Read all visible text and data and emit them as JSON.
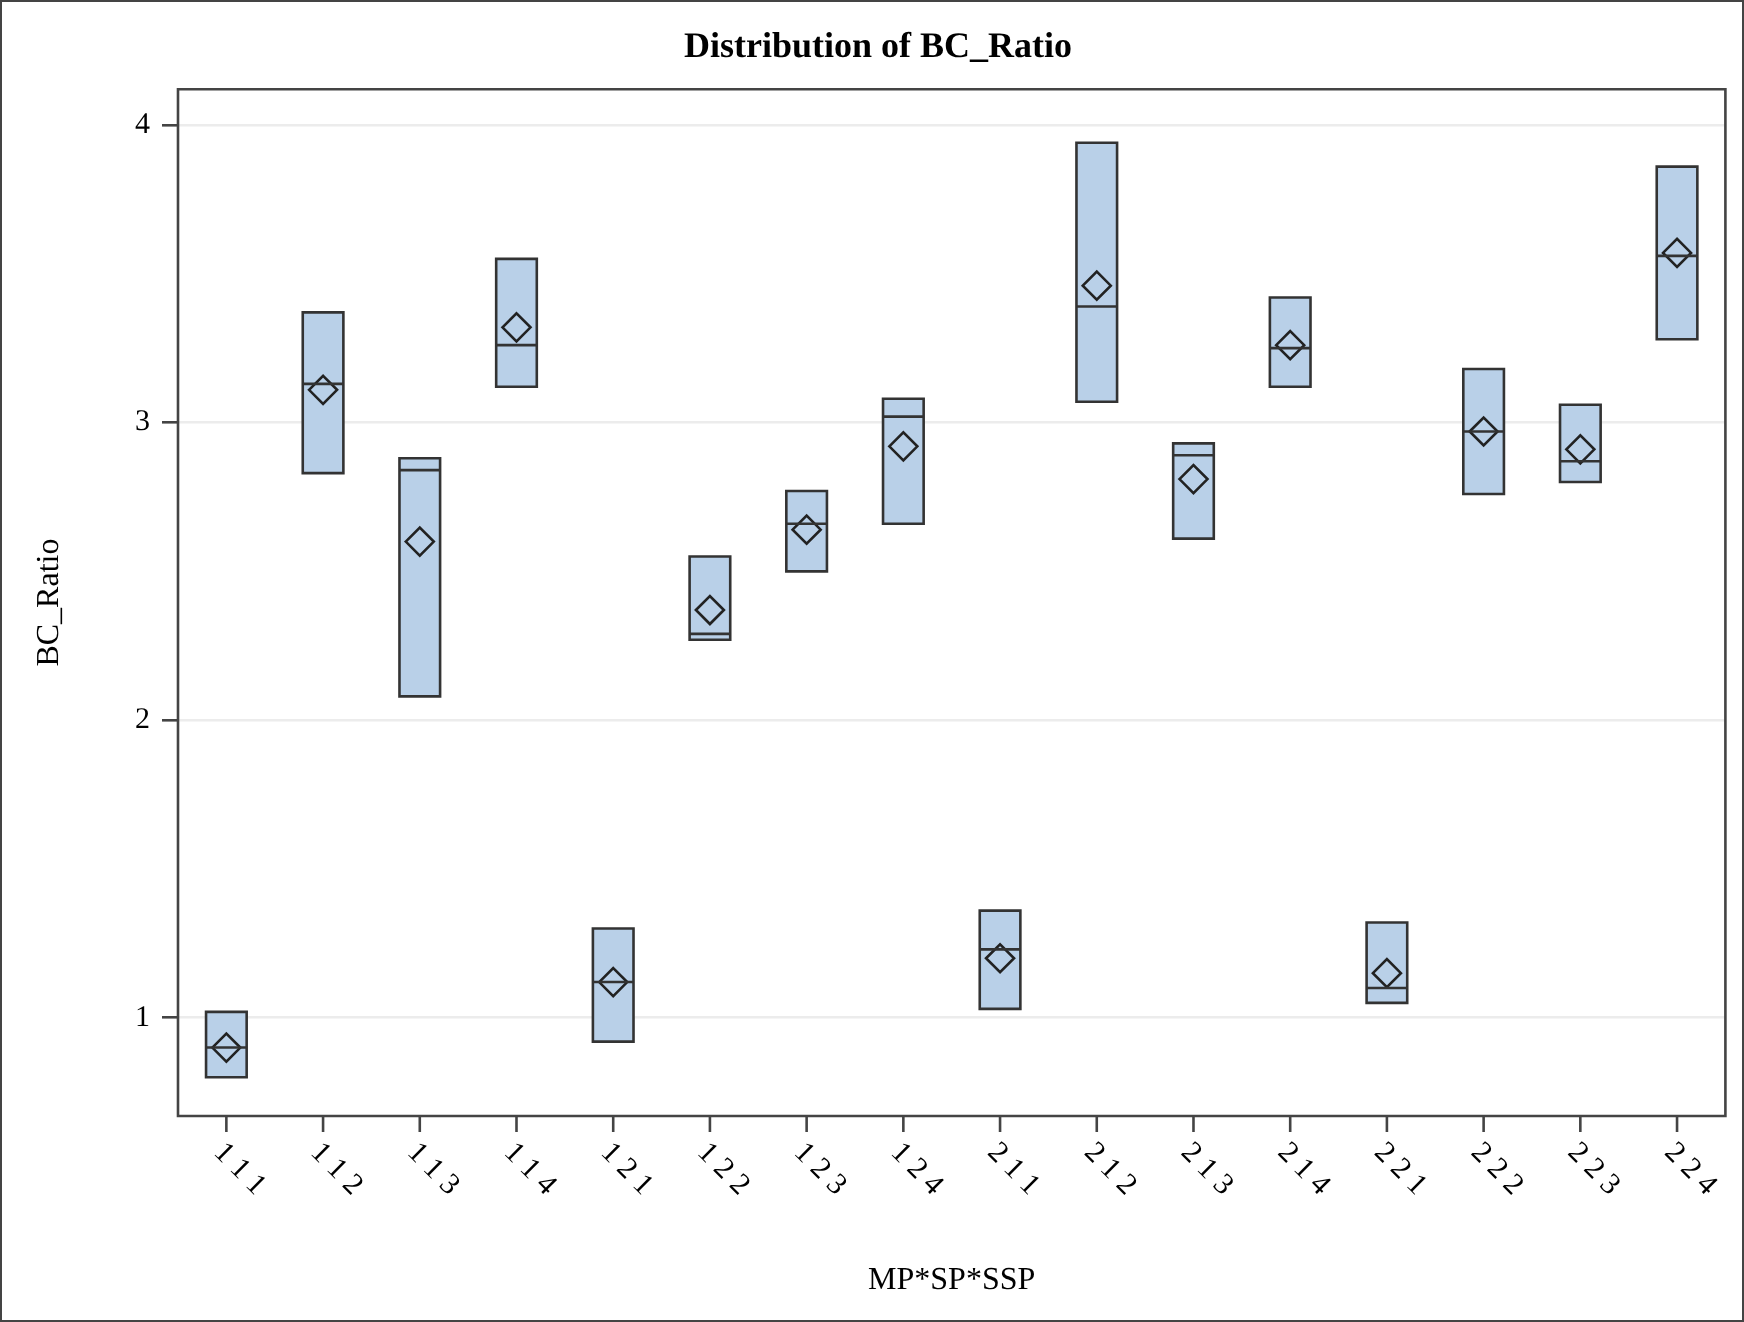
{
  "chart_data": {
    "type": "box",
    "title": "Distribution of BC_Ratio",
    "xlabel": "MP*SP*SSP",
    "ylabel": "BC_Ratio",
    "categories": [
      "1 1 1",
      "1 1 2",
      "1 1 3",
      "1 1 4",
      "1 2 1",
      "1 2 2",
      "1 2 3",
      "1 2 4",
      "2 1 1",
      "2 1 2",
      "2 1 3",
      "2 1 4",
      "2 2 1",
      "2 2 2",
      "2 2 3",
      "2 2 4"
    ],
    "color": "#b9d0e8",
    "marker": "diamond",
    "grid": "y",
    "ylim": [
      0.67,
      4.12
    ],
    "yticks": [
      1,
      2,
      3,
      4
    ],
    "boxes": [
      {
        "low": 0.8,
        "q1": 0.8,
        "median": 0.9,
        "q3": 1.02,
        "high": 1.02,
        "mean": 0.9
      },
      {
        "low": 2.83,
        "q1": 2.83,
        "median": 3.13,
        "q3": 3.37,
        "high": 3.37,
        "mean": 3.11
      },
      {
        "low": 2.08,
        "q1": 2.08,
        "median": 2.84,
        "q3": 2.88,
        "high": 2.88,
        "mean": 2.6
      },
      {
        "low": 3.12,
        "q1": 3.12,
        "median": 3.26,
        "q3": 3.55,
        "high": 3.55,
        "mean": 3.32
      },
      {
        "low": 0.92,
        "q1": 0.92,
        "median": 1.12,
        "q3": 1.3,
        "high": 1.3,
        "mean": 1.12
      },
      {
        "low": 2.27,
        "q1": 2.27,
        "median": 2.29,
        "q3": 2.55,
        "high": 2.55,
        "mean": 2.37
      },
      {
        "low": 2.5,
        "q1": 2.5,
        "median": 2.66,
        "q3": 2.77,
        "high": 2.77,
        "mean": 2.64
      },
      {
        "low": 2.66,
        "q1": 2.66,
        "median": 3.02,
        "q3": 3.08,
        "high": 3.08,
        "mean": 2.92
      },
      {
        "low": 1.03,
        "q1": 1.03,
        "median": 1.23,
        "q3": 1.36,
        "high": 1.36,
        "mean": 1.2
      },
      {
        "low": 3.07,
        "q1": 3.07,
        "median": 3.39,
        "q3": 3.94,
        "high": 3.94,
        "mean": 3.46
      },
      {
        "low": 2.61,
        "q1": 2.61,
        "median": 2.89,
        "q3": 2.93,
        "high": 2.93,
        "mean": 2.81
      },
      {
        "low": 3.12,
        "q1": 3.12,
        "median": 3.25,
        "q3": 3.42,
        "high": 3.42,
        "mean": 3.26
      },
      {
        "low": 1.05,
        "q1": 1.05,
        "median": 1.1,
        "q3": 1.32,
        "high": 1.32,
        "mean": 1.15
      },
      {
        "low": 2.76,
        "q1": 2.76,
        "median": 2.97,
        "q3": 3.18,
        "high": 3.18,
        "mean": 2.97
      },
      {
        "low": 2.8,
        "q1": 2.8,
        "median": 2.87,
        "q3": 3.06,
        "high": 3.06,
        "mean": 2.91
      },
      {
        "low": 3.28,
        "q1": 3.28,
        "median": 3.56,
        "q3": 3.86,
        "high": 3.86,
        "mean": 3.57
      }
    ]
  }
}
